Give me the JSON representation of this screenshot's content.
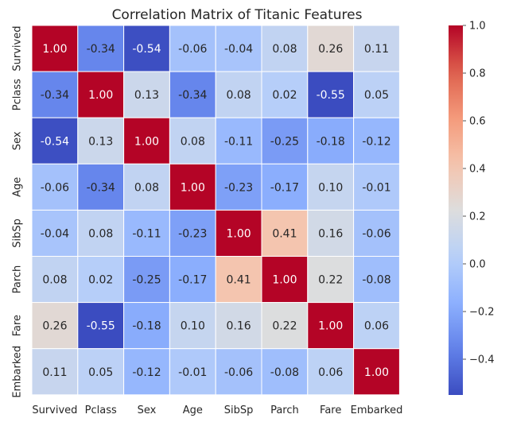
{
  "chart_data": {
    "type": "heatmap",
    "title": "Correlation Matrix of Titanic Features",
    "xlabel": "",
    "ylabel": "",
    "x_labels": [
      "Survived",
      "Pclass",
      "Sex",
      "Age",
      "SibSp",
      "Parch",
      "Fare",
      "Embarked"
    ],
    "y_labels": [
      "Survived",
      "Pclass",
      "Sex",
      "Age",
      "SibSp",
      "Parch",
      "Fare",
      "Embarked"
    ],
    "values": [
      [
        1.0,
        -0.34,
        -0.54,
        -0.06,
        -0.04,
        0.08,
        0.26,
        0.11
      ],
      [
        -0.34,
        1.0,
        0.13,
        -0.34,
        0.08,
        0.02,
        -0.55,
        0.05
      ],
      [
        -0.54,
        0.13,
        1.0,
        0.08,
        -0.11,
        -0.25,
        -0.18,
        -0.12
      ],
      [
        -0.06,
        -0.34,
        0.08,
        1.0,
        -0.23,
        -0.17,
        0.1,
        -0.01
      ],
      [
        -0.04,
        0.08,
        -0.11,
        -0.23,
        1.0,
        0.41,
        0.16,
        -0.06
      ],
      [
        0.08,
        0.02,
        -0.25,
        -0.17,
        0.41,
        1.0,
        0.22,
        -0.08
      ],
      [
        0.26,
        -0.55,
        -0.18,
        0.1,
        0.16,
        0.22,
        1.0,
        0.06
      ],
      [
        0.11,
        0.05,
        -0.12,
        -0.01,
        -0.06,
        -0.08,
        0.06,
        1.0
      ]
    ],
    "value_format": "0.00",
    "colormap": "coolwarm",
    "color_range": [
      -0.55,
      1.0
    ],
    "colorbar": {
      "ticks": [
        -0.4,
        -0.2,
        0.0,
        0.2,
        0.4,
        0.6,
        0.8,
        1.0
      ],
      "tick_labels": [
        "−0.4",
        "−0.2",
        "0.0",
        "0.2",
        "0.4",
        "0.6",
        "0.8",
        "1.0"
      ]
    },
    "grid": false,
    "cell_border_color": "#ffffff"
  }
}
